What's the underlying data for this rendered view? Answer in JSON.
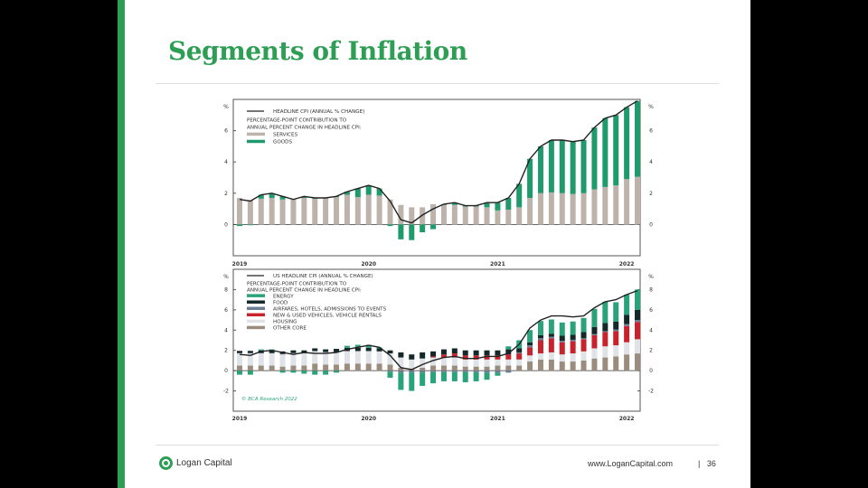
{
  "slide": {
    "title": "Segments of Inflation",
    "footer": {
      "brand": "Logan Capital",
      "url": "www.LoganCapital.com",
      "separator": "|",
      "page": "36"
    },
    "colors": {
      "brand_green": "#2f9e55"
    }
  },
  "chart_data": [
    {
      "type": "bar",
      "stacked": true,
      "x": [
        "2019-01",
        "2019-02",
        "2019-03",
        "2019-04",
        "2019-05",
        "2019-06",
        "2019-07",
        "2019-08",
        "2019-09",
        "2019-10",
        "2019-11",
        "2019-12",
        "2020-01",
        "2020-02",
        "2020-03",
        "2020-04",
        "2020-05",
        "2020-06",
        "2020-07",
        "2020-08",
        "2020-09",
        "2020-10",
        "2020-11",
        "2020-12",
        "2021-01",
        "2021-02",
        "2021-03",
        "2021-04",
        "2021-05",
        "2021-06",
        "2021-07",
        "2021-08",
        "2021-09",
        "2021-10",
        "2021-11",
        "2021-12",
        "2022-01",
        "2022-02"
      ],
      "x_tick_labels": [
        "2019",
        "2020",
        "2021",
        "2022"
      ],
      "y_unit": "%",
      "y_ticks": [
        "0",
        "2",
        "4",
        "6"
      ],
      "ylim": [
        -2,
        8
      ],
      "legend_heading": "PERCENTAGE-POINT CONTRIBUTION TO ANNUAL PERCENT CHANGE IN HEADLINE CPI:",
      "legend_heading_lines": [
        "PERCENTAGE-POINT CONTRIBUTION TO",
        "ANNUAL PERCENT CHANGE IN HEADLINE CPI:"
      ],
      "legend_placement": "top-left",
      "line": {
        "name": "HEADLINE CPI (ANNUAL % CHANGE)",
        "color": "#222222",
        "values": [
          1.6,
          1.5,
          1.9,
          2.0,
          1.8,
          1.6,
          1.8,
          1.7,
          1.7,
          1.8,
          2.1,
          2.3,
          2.5,
          2.3,
          1.5,
          0.3,
          0.1,
          0.6,
          1.0,
          1.3,
          1.4,
          1.2,
          1.2,
          1.4,
          1.4,
          1.7,
          2.6,
          4.2,
          5.0,
          5.4,
          5.4,
          5.3,
          5.4,
          6.2,
          6.8,
          7.0,
          7.5,
          7.9
        ]
      },
      "series": [
        {
          "name": "SERVICES",
          "color": "#bdb3ab",
          "values": [
            1.7,
            1.55,
            1.65,
            1.7,
            1.6,
            1.6,
            1.7,
            1.65,
            1.7,
            1.75,
            1.9,
            1.75,
            1.9,
            1.85,
            1.6,
            1.25,
            1.1,
            1.1,
            1.3,
            1.25,
            1.25,
            1.15,
            1.15,
            1.1,
            0.9,
            0.95,
            1.1,
            1.7,
            2.0,
            2.05,
            2.0,
            1.95,
            2.0,
            2.25,
            2.4,
            2.5,
            2.9,
            3.05
          ]
        },
        {
          "name": "GOODS",
          "color": "#1f9a6c",
          "values": [
            -0.1,
            -0.05,
            0.25,
            0.3,
            0.2,
            0,
            0.1,
            0.05,
            0,
            0.05,
            0.2,
            0.55,
            0.6,
            0.45,
            -0.1,
            -0.95,
            -1.0,
            -0.5,
            -0.3,
            0.05,
            0.15,
            0.05,
            0.05,
            0.3,
            0.5,
            0.75,
            1.5,
            2.5,
            3.0,
            3.35,
            3.4,
            3.35,
            3.4,
            3.95,
            4.4,
            4.5,
            4.6,
            4.85
          ]
        }
      ]
    },
    {
      "type": "bar",
      "stacked": true,
      "x": [
        "2019-01",
        "2019-02",
        "2019-03",
        "2019-04",
        "2019-05",
        "2019-06",
        "2019-07",
        "2019-08",
        "2019-09",
        "2019-10",
        "2019-11",
        "2019-12",
        "2020-01",
        "2020-02",
        "2020-03",
        "2020-04",
        "2020-05",
        "2020-06",
        "2020-07",
        "2020-08",
        "2020-09",
        "2020-10",
        "2020-11",
        "2020-12",
        "2021-01",
        "2021-02",
        "2021-03",
        "2021-04",
        "2021-05",
        "2021-06",
        "2021-07",
        "2021-08",
        "2021-09",
        "2021-10",
        "2021-11",
        "2021-12",
        "2022-01",
        "2022-02"
      ],
      "x_tick_labels": [
        "2019",
        "2020",
        "2021",
        "2022"
      ],
      "y_unit": "%",
      "y_ticks": [
        "-2",
        "0",
        "2",
        "4",
        "6",
        "8"
      ],
      "ylim": [
        -4,
        10
      ],
      "legend_heading": "PERCENTAGE-POINT CONTRIBUTION TO ANNUAL PERCENT CHANGE IN HEADLINE CPI:",
      "legend_heading_lines": [
        "PERCENTAGE-POINT CONTRIBUTION TO",
        "ANNUAL PERCENT CHANGE IN HEADLINE CPI:"
      ],
      "legend_placement": "top-left",
      "source": "© BCA Research 2022",
      "line": {
        "name": "US HEADLINE CPI (ANNUAL % CHANGE)",
        "color": "#222222",
        "values": [
          1.6,
          1.5,
          1.9,
          2.0,
          1.8,
          1.6,
          1.8,
          1.7,
          1.7,
          1.8,
          2.1,
          2.3,
          2.5,
          2.3,
          1.5,
          0.3,
          0.1,
          0.6,
          1.0,
          1.3,
          1.4,
          1.2,
          1.2,
          1.4,
          1.4,
          1.7,
          2.6,
          4.2,
          5.0,
          5.4,
          5.4,
          5.3,
          5.4,
          6.2,
          6.8,
          7.0,
          7.5,
          7.9
        ]
      },
      "series": [
        {
          "name": "OTHER CORE",
          "color": "#9b8d7d",
          "values": [
            0.5,
            0.5,
            0.5,
            0.5,
            0.4,
            0.5,
            0.5,
            0.7,
            0.6,
            0.6,
            0.7,
            0.7,
            0.7,
            0.7,
            0.6,
            0.3,
            0.2,
            0.3,
            0.5,
            0.5,
            0.5,
            0.4,
            0.4,
            0.4,
            0.5,
            0.5,
            0.5,
            0.9,
            1.1,
            1.1,
            0.9,
            0.9,
            1.0,
            1.2,
            1.3,
            1.4,
            1.6,
            1.7
          ]
        },
        {
          "name": "HOUSING",
          "color": "#dfe3e8",
          "values": [
            1.2,
            1.2,
            1.2,
            1.2,
            1.2,
            1.2,
            1.2,
            1.2,
            1.2,
            1.2,
            1.2,
            1.2,
            1.2,
            1.2,
            1.1,
            1.0,
            0.9,
            0.9,
            0.8,
            0.8,
            0.8,
            0.7,
            0.7,
            0.7,
            0.6,
            0.6,
            0.6,
            0.6,
            0.6,
            0.7,
            0.7,
            0.8,
            0.9,
            1.0,
            1.1,
            1.1,
            1.2,
            1.4
          ]
        },
        {
          "name": "NEW & USED VEHICLES, VEHICLE RENTALS",
          "color": "#c8232c",
          "values": [
            0,
            0,
            0,
            0,
            0,
            0,
            0,
            0,
            0,
            0,
            0,
            0,
            0,
            0,
            0,
            0,
            0,
            0,
            0.1,
            0.3,
            0.4,
            0.4,
            0.4,
            0.4,
            0.4,
            0.5,
            0.6,
            0.8,
            1.3,
            1.4,
            1.2,
            1.2,
            1.2,
            1.3,
            1.4,
            1.4,
            1.6,
            1.7
          ]
        },
        {
          "name": "AIRFARES, HOTELS, ADMISSIONS TO EVENTS",
          "color": "#6a7f95",
          "values": [
            0.05,
            0.05,
            0.05,
            0.05,
            0.05,
            0.05,
            0.05,
            0.05,
            0.05,
            0.05,
            0.05,
            0.05,
            0.05,
            0,
            -0.1,
            -0.2,
            -0.2,
            -0.2,
            -0.15,
            -0.15,
            -0.15,
            -0.15,
            -0.15,
            -0.2,
            -0.2,
            -0.2,
            0.1,
            0.2,
            0.2,
            0.15,
            0.15,
            0.15,
            0.1,
            0.1,
            0.1,
            0.15,
            0.2,
            0.2
          ]
        },
        {
          "name": "FOOD",
          "color": "#14282a",
          "values": [
            0.2,
            0.2,
            0.25,
            0.25,
            0.25,
            0.25,
            0.25,
            0.25,
            0.25,
            0.3,
            0.3,
            0.3,
            0.3,
            0.3,
            0.3,
            0.5,
            0.5,
            0.6,
            0.5,
            0.5,
            0.5,
            0.5,
            0.5,
            0.5,
            0.5,
            0.5,
            0.4,
            0.3,
            0.3,
            0.3,
            0.5,
            0.5,
            0.6,
            0.7,
            0.8,
            0.8,
            0.9,
            1.0
          ]
        },
        {
          "name": "ENERGY",
          "color": "#2aa37a",
          "values": [
            -0.4,
            -0.4,
            0.1,
            0.1,
            -0.2,
            -0.2,
            -0.3,
            -0.4,
            -0.4,
            -0.2,
            0.2,
            0.3,
            0.3,
            0.1,
            -0.6,
            -1.7,
            -1.8,
            -1.3,
            -1.1,
            -0.9,
            -0.9,
            -1.0,
            -0.9,
            -0.7,
            -0.3,
            0.3,
            0.8,
            1.2,
            1.4,
            1.4,
            1.3,
            1.3,
            1.4,
            1.8,
            2.1,
            1.9,
            2.0,
            2.0
          ]
        }
      ],
      "legend_order": [
        "ENERGY",
        "FOOD",
        "AIRFARES, HOTELS, ADMISSIONS TO EVENTS",
        "NEW & USED VEHICLES, VEHICLE RENTALS",
        "HOUSING",
        "OTHER CORE"
      ]
    }
  ]
}
